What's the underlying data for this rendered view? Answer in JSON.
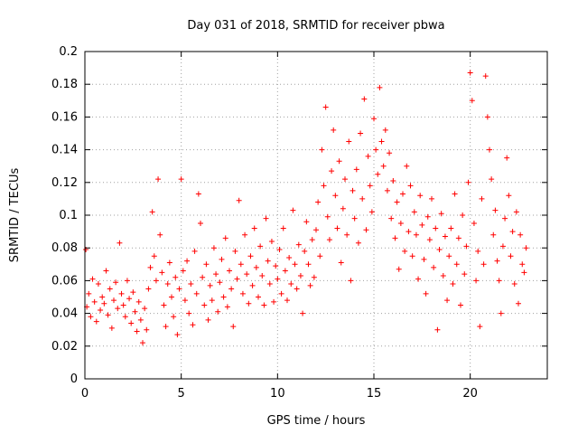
{
  "chart_data": {
    "type": "scatter",
    "title": "Day 031 of 2018, SRMTID for receiver pbwa",
    "xlabel": "GPS time / hours",
    "ylabel": "SRMTID / TECUs",
    "xlim": [
      0,
      24
    ],
    "ylim": [
      0,
      0.2
    ],
    "xticks": [
      0,
      5,
      10,
      15,
      20
    ],
    "xtick_labels": [
      "0",
      "5",
      "10",
      "15",
      "20"
    ],
    "yticks": [
      0,
      0.02,
      0.04,
      0.06,
      0.08,
      0.1,
      0.12,
      0.14,
      0.16,
      0.18,
      0.2
    ],
    "ytick_labels": [
      "0",
      "0.02",
      "0.04",
      "0.06",
      "0.08",
      "0.1",
      "0.12",
      "0.14",
      "0.16",
      "0.18",
      "0.2"
    ],
    "grid": true,
    "marker": "+",
    "color": "#ff0000",
    "series": [
      {
        "name": "SRMTID",
        "points": [
          [
            0.05,
            0.079
          ],
          [
            0.1,
            0.044
          ],
          [
            0.2,
            0.052
          ],
          [
            0.3,
            0.038
          ],
          [
            0.4,
            0.061
          ],
          [
            0.5,
            0.047
          ],
          [
            0.6,
            0.035
          ],
          [
            0.7,
            0.058
          ],
          [
            0.8,
            0.042
          ],
          [
            0.9,
            0.05
          ],
          [
            1.0,
            0.046
          ],
          [
            1.1,
            0.066
          ],
          [
            1.2,
            0.039
          ],
          [
            1.3,
            0.055
          ],
          [
            1.4,
            0.031
          ],
          [
            1.5,
            0.048
          ],
          [
            1.6,
            0.059
          ],
          [
            1.7,
            0.043
          ],
          [
            1.8,
            0.083
          ],
          [
            1.9,
            0.052
          ],
          [
            2.0,
            0.045
          ],
          [
            2.1,
            0.038
          ],
          [
            2.2,
            0.06
          ],
          [
            2.3,
            0.049
          ],
          [
            2.4,
            0.034
          ],
          [
            2.5,
            0.053
          ],
          [
            2.6,
            0.041
          ],
          [
            2.7,
            0.029
          ],
          [
            2.8,
            0.047
          ],
          [
            2.9,
            0.036
          ],
          [
            3.0,
            0.022
          ],
          [
            3.1,
            0.043
          ],
          [
            3.2,
            0.03
          ],
          [
            3.3,
            0.055
          ],
          [
            3.4,
            0.068
          ],
          [
            3.5,
            0.102
          ],
          [
            3.6,
            0.075
          ],
          [
            3.7,
            0.06
          ],
          [
            3.8,
            0.122
          ],
          [
            3.9,
            0.088
          ],
          [
            4.0,
            0.065
          ],
          [
            4.1,
            0.045
          ],
          [
            4.2,
            0.032
          ],
          [
            4.3,
            0.058
          ],
          [
            4.4,
            0.071
          ],
          [
            4.5,
            0.05
          ],
          [
            4.6,
            0.038
          ],
          [
            4.7,
            0.062
          ],
          [
            4.8,
            0.027
          ],
          [
            4.9,
            0.055
          ],
          [
            5.0,
            0.122
          ],
          [
            5.1,
            0.066
          ],
          [
            5.2,
            0.048
          ],
          [
            5.3,
            0.072
          ],
          [
            5.4,
            0.04
          ],
          [
            5.5,
            0.058
          ],
          [
            5.6,
            0.033
          ],
          [
            5.7,
            0.078
          ],
          [
            5.8,
            0.052
          ],
          [
            5.9,
            0.113
          ],
          [
            6.0,
            0.095
          ],
          [
            6.1,
            0.062
          ],
          [
            6.2,
            0.045
          ],
          [
            6.3,
            0.07
          ],
          [
            6.4,
            0.036
          ],
          [
            6.5,
            0.057
          ],
          [
            6.6,
            0.048
          ],
          [
            6.7,
            0.08
          ],
          [
            6.8,
            0.064
          ],
          [
            6.9,
            0.041
          ],
          [
            7.0,
            0.059
          ],
          [
            7.1,
            0.073
          ],
          [
            7.2,
            0.05
          ],
          [
            7.3,
            0.086
          ],
          [
            7.4,
            0.044
          ],
          [
            7.5,
            0.066
          ],
          [
            7.6,
            0.055
          ],
          [
            7.7,
            0.032
          ],
          [
            7.8,
            0.078
          ],
          [
            7.9,
            0.061
          ],
          [
            8.0,
            0.109
          ],
          [
            8.1,
            0.07
          ],
          [
            8.2,
            0.052
          ],
          [
            8.3,
            0.088
          ],
          [
            8.4,
            0.064
          ],
          [
            8.5,
            0.046
          ],
          [
            8.6,
            0.075
          ],
          [
            8.7,
            0.057
          ],
          [
            8.8,
            0.092
          ],
          [
            8.9,
            0.068
          ],
          [
            9.0,
            0.05
          ],
          [
            9.1,
            0.081
          ],
          [
            9.2,
            0.063
          ],
          [
            9.3,
            0.045
          ],
          [
            9.4,
            0.098
          ],
          [
            9.5,
            0.072
          ],
          [
            9.6,
            0.058
          ],
          [
            9.7,
            0.084
          ],
          [
            9.8,
            0.047
          ],
          [
            9.9,
            0.069
          ],
          [
            10.0,
            0.061
          ],
          [
            10.1,
            0.079
          ],
          [
            10.2,
            0.052
          ],
          [
            10.3,
            0.092
          ],
          [
            10.4,
            0.066
          ],
          [
            10.5,
            0.048
          ],
          [
            10.6,
            0.074
          ],
          [
            10.7,
            0.058
          ],
          [
            10.8,
            0.103
          ],
          [
            10.9,
            0.07
          ],
          [
            11.0,
            0.055
          ],
          [
            11.1,
            0.082
          ],
          [
            11.2,
            0.063
          ],
          [
            11.3,
            0.04
          ],
          [
            11.4,
            0.078
          ],
          [
            11.5,
            0.096
          ],
          [
            11.6,
            0.07
          ],
          [
            11.7,
            0.057
          ],
          [
            11.8,
            0.085
          ],
          [
            11.9,
            0.062
          ],
          [
            12.0,
            0.091
          ],
          [
            12.1,
            0.108
          ],
          [
            12.2,
            0.075
          ],
          [
            12.3,
            0.14
          ],
          [
            12.4,
            0.118
          ],
          [
            12.5,
            0.166
          ],
          [
            12.6,
            0.099
          ],
          [
            12.7,
            0.085
          ],
          [
            12.8,
            0.127
          ],
          [
            12.9,
            0.152
          ],
          [
            13.0,
            0.112
          ],
          [
            13.1,
            0.092
          ],
          [
            13.2,
            0.133
          ],
          [
            13.3,
            0.071
          ],
          [
            13.4,
            0.104
          ],
          [
            13.5,
            0.122
          ],
          [
            13.6,
            0.088
          ],
          [
            13.7,
            0.145
          ],
          [
            13.8,
            0.06
          ],
          [
            13.9,
            0.115
          ],
          [
            14.0,
            0.098
          ],
          [
            14.1,
            0.128
          ],
          [
            14.2,
            0.083
          ],
          [
            14.3,
            0.15
          ],
          [
            14.4,
            0.11
          ],
          [
            14.5,
            0.171
          ],
          [
            14.6,
            0.091
          ],
          [
            14.7,
            0.136
          ],
          [
            14.8,
            0.118
          ],
          [
            14.9,
            0.102
          ],
          [
            15.0,
            0.159
          ],
          [
            15.1,
            0.14
          ],
          [
            15.2,
            0.125
          ],
          [
            15.3,
            0.178
          ],
          [
            15.4,
            0.145
          ],
          [
            15.5,
            0.13
          ],
          [
            15.6,
            0.152
          ],
          [
            15.7,
            0.115
          ],
          [
            15.8,
            0.138
          ],
          [
            15.9,
            0.098
          ],
          [
            16.0,
            0.121
          ],
          [
            16.1,
            0.086
          ],
          [
            16.2,
            0.108
          ],
          [
            16.3,
            0.067
          ],
          [
            16.4,
            0.095
          ],
          [
            16.5,
            0.113
          ],
          [
            16.6,
            0.078
          ],
          [
            16.7,
            0.13
          ],
          [
            16.8,
            0.09
          ],
          [
            16.9,
            0.118
          ],
          [
            17.0,
            0.075
          ],
          [
            17.1,
            0.102
          ],
          [
            17.2,
            0.088
          ],
          [
            17.3,
            0.061
          ],
          [
            17.4,
            0.112
          ],
          [
            17.5,
            0.094
          ],
          [
            17.6,
            0.073
          ],
          [
            17.7,
            0.052
          ],
          [
            17.8,
            0.099
          ],
          [
            17.9,
            0.085
          ],
          [
            18.0,
            0.11
          ],
          [
            18.1,
            0.068
          ],
          [
            18.2,
            0.092
          ],
          [
            18.3,
            0.03
          ],
          [
            18.4,
            0.079
          ],
          [
            18.5,
            0.101
          ],
          [
            18.6,
            0.063
          ],
          [
            18.7,
            0.087
          ],
          [
            18.8,
            0.048
          ],
          [
            18.9,
            0.075
          ],
          [
            19.0,
            0.092
          ],
          [
            19.1,
            0.058
          ],
          [
            19.2,
            0.113
          ],
          [
            19.3,
            0.07
          ],
          [
            19.4,
            0.086
          ],
          [
            19.5,
            0.045
          ],
          [
            19.6,
            0.1
          ],
          [
            19.7,
            0.064
          ],
          [
            19.8,
            0.081
          ],
          [
            19.9,
            0.12
          ],
          [
            20.0,
            0.187
          ],
          [
            20.1,
            0.17
          ],
          [
            20.2,
            0.095
          ],
          [
            20.3,
            0.06
          ],
          [
            20.4,
            0.078
          ],
          [
            20.5,
            0.032
          ],
          [
            20.6,
            0.11
          ],
          [
            20.7,
            0.07
          ],
          [
            20.8,
            0.185
          ],
          [
            20.9,
            0.16
          ],
          [
            21.0,
            0.14
          ],
          [
            21.1,
            0.122
          ],
          [
            21.2,
            0.088
          ],
          [
            21.3,
            0.103
          ],
          [
            21.4,
            0.072
          ],
          [
            21.5,
            0.06
          ],
          [
            21.6,
            0.04
          ],
          [
            21.7,
            0.081
          ],
          [
            21.8,
            0.098
          ],
          [
            21.9,
            0.135
          ],
          [
            22.0,
            0.112
          ],
          [
            22.1,
            0.075
          ],
          [
            22.2,
            0.09
          ],
          [
            22.3,
            0.058
          ],
          [
            22.4,
            0.102
          ],
          [
            22.5,
            0.046
          ],
          [
            22.6,
            0.088
          ],
          [
            22.7,
            0.07
          ],
          [
            22.8,
            0.065
          ],
          [
            22.9,
            0.08
          ]
        ]
      }
    ]
  }
}
